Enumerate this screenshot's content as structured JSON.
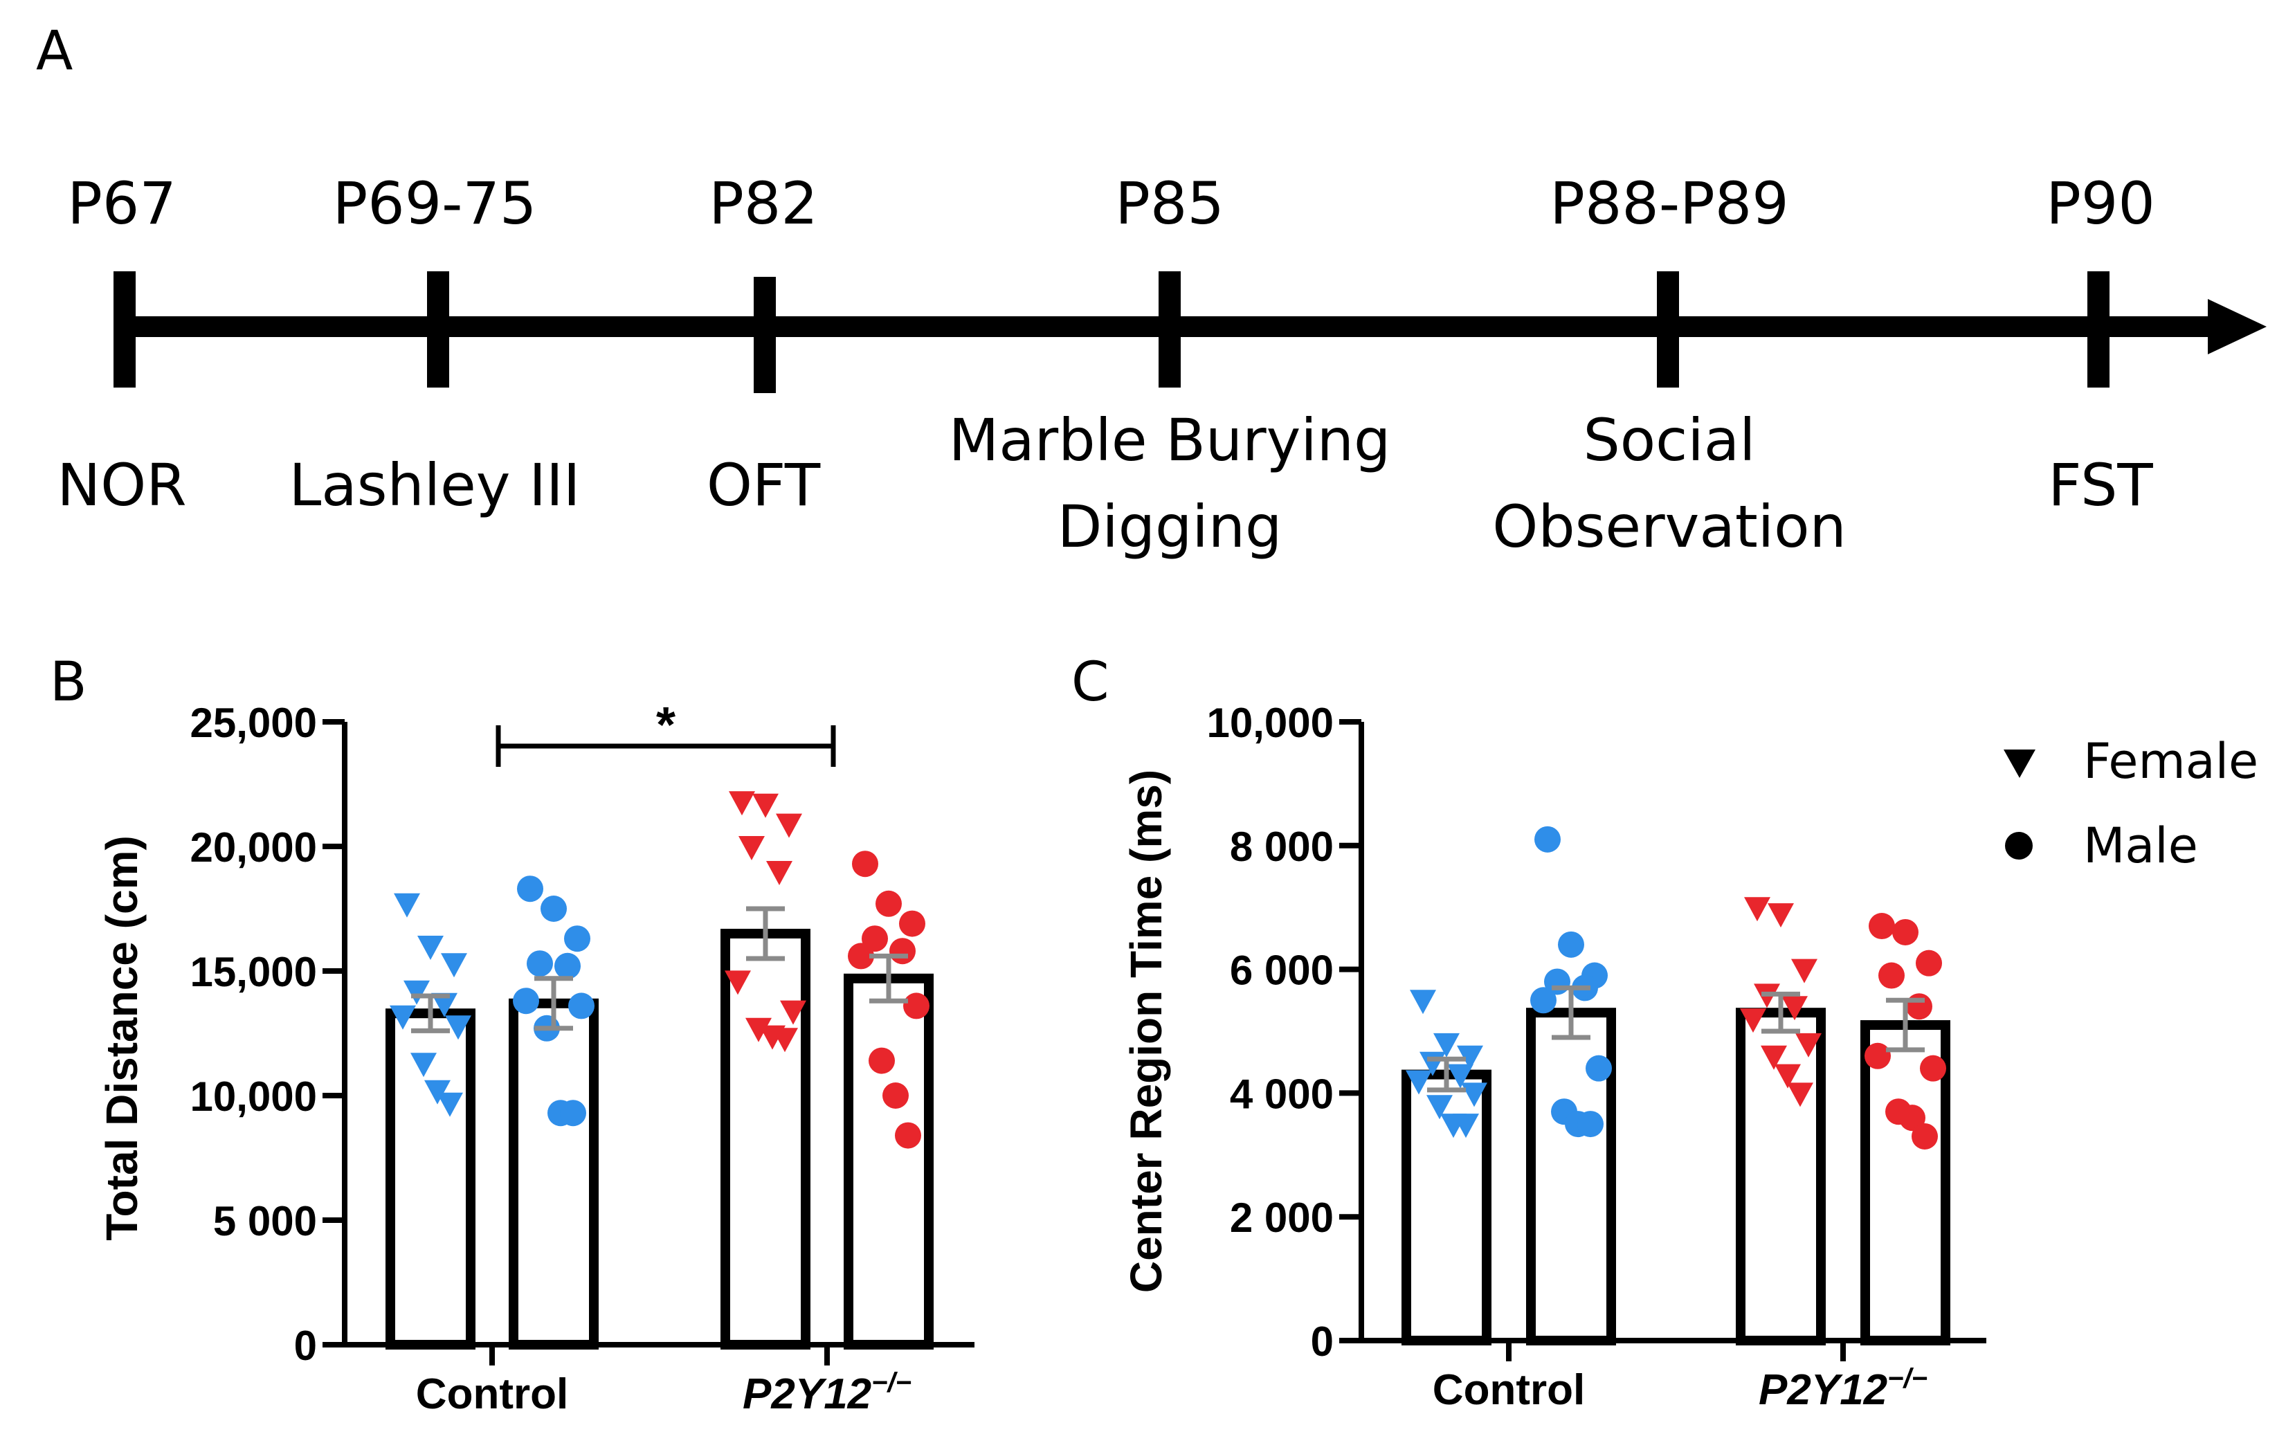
{
  "panels": {
    "A": {
      "label": "A",
      "timeline": [
        {
          "age": "P67",
          "task": [
            "NOR"
          ]
        },
        {
          "age": "P69-75",
          "task": [
            "Lashley III"
          ]
        },
        {
          "age": "P82",
          "task": [
            "OFT"
          ]
        },
        {
          "age": "P85",
          "task": [
            "Marble Burying",
            "Digging"
          ]
        },
        {
          "age": "P88-P89",
          "task": [
            "Social",
            "Observation"
          ]
        },
        {
          "age": "P90",
          "task": [
            "FST"
          ]
        }
      ]
    },
    "B": {
      "label": "B"
    },
    "C": {
      "label": "C"
    }
  },
  "legend": {
    "female_label": "Female",
    "male_label": "Male"
  },
  "colors": {
    "control": "#2f8ee9",
    "knockout": "#e8262c",
    "bar_outline": "#000000",
    "error_bar": "#8a8a8a"
  },
  "chart_data": [
    {
      "panel": "B",
      "type": "bar",
      "title": "",
      "ylabel": "Total Distance (cm)",
      "xlabel": "",
      "ylim": [
        0,
        25000
      ],
      "yticks": [
        0,
        5000,
        10000,
        15000,
        20000,
        25000
      ],
      "ytick_labels": [
        "0",
        "5 000",
        "10,000",
        "15,000",
        "20,000",
        "25,000"
      ],
      "groups": [
        {
          "label": "Control",
          "italic": false,
          "suffix": ""
        },
        {
          "label": "P2Y12",
          "italic": true,
          "suffix": "−/−"
        }
      ],
      "bars": [
        {
          "group": "Control",
          "sex": "Female",
          "mean": 13300,
          "sem": 700,
          "points": [
            17700,
            16000,
            15300,
            14200,
            13700,
            13200,
            12800,
            11300,
            10200,
            9700
          ]
        },
        {
          "group": "Control",
          "sex": "Male",
          "mean": 13700,
          "sem": 1000,
          "points": [
            18300,
            17500,
            16300,
            15300,
            15200,
            13800,
            13600,
            12700,
            9300,
            9300
          ]
        },
        {
          "group": "P2Y12",
          "sex": "Female",
          "mean": 16500,
          "sem": 1000,
          "points": [
            21800,
            21700,
            20900,
            20000,
            19000,
            14600,
            13400,
            12700,
            12400,
            12300
          ]
        },
        {
          "group": "P2Y12",
          "sex": "Male",
          "mean": 14700,
          "sem": 900,
          "points": [
            19300,
            17700,
            16900,
            16300,
            15800,
            15600,
            13600,
            11400,
            10000,
            8400
          ]
        }
      ],
      "significance": {
        "from_bar": 1,
        "to_bar": 2,
        "label": "*"
      }
    },
    {
      "panel": "C",
      "type": "bar",
      "title": "",
      "ylabel": "Center Region Time (ms)",
      "xlabel": "",
      "ylim": [
        0,
        10000
      ],
      "yticks": [
        0,
        2000,
        4000,
        6000,
        8000,
        10000
      ],
      "ytick_labels": [
        "0",
        "2 000",
        "4 000",
        "6 000",
        "8 000",
        "10,000"
      ],
      "groups": [
        {
          "label": "Control",
          "italic": false,
          "suffix": ""
        },
        {
          "label": "P2Y12",
          "italic": true,
          "suffix": "−/−"
        }
      ],
      "bars": [
        {
          "group": "Control",
          "sex": "Female",
          "mean": 4300,
          "sem": 250,
          "points": [
            5500,
            4800,
            4600,
            4500,
            4300,
            4200,
            4000,
            3800,
            3500,
            3500
          ]
        },
        {
          "group": "Control",
          "sex": "Male",
          "mean": 5300,
          "sem": 400,
          "points": [
            8100,
            6400,
            5900,
            5800,
            5700,
            5500,
            4400,
            3700,
            3500,
            3500
          ]
        },
        {
          "group": "P2Y12",
          "sex": "Female",
          "mean": 5300,
          "sem": 300,
          "points": [
            7000,
            6900,
            6000,
            5600,
            5400,
            5200,
            4800,
            4600,
            4300,
            4000
          ]
        },
        {
          "group": "P2Y12",
          "sex": "Male",
          "mean": 5100,
          "sem": 400,
          "points": [
            6700,
            6600,
            6100,
            5900,
            5400,
            4600,
            4400,
            3700,
            3600,
            3300
          ]
        }
      ]
    }
  ]
}
